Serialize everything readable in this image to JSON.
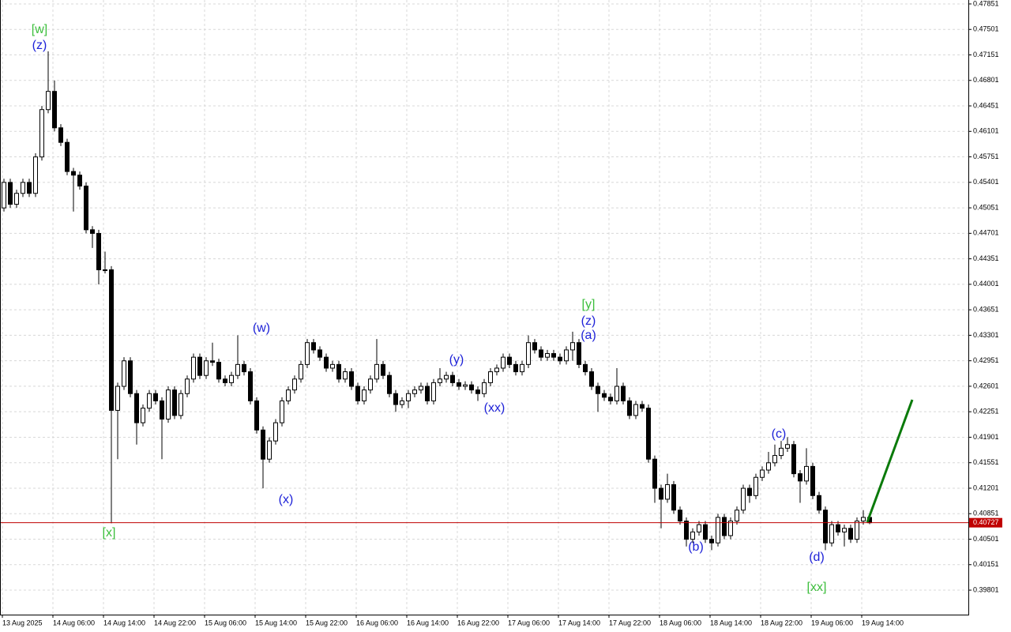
{
  "chart_data": {
    "type": "candlestick",
    "categories": [
      "13 Aug 2025",
      null,
      null,
      null,
      null,
      null,
      null,
      null,
      "14 Aug 06:00",
      null,
      null,
      null,
      null,
      null,
      null,
      null,
      "14 Aug 14:00",
      null,
      null,
      null,
      null,
      null,
      null,
      null,
      "14 Aug 22:00",
      null,
      null,
      null,
      null,
      null,
      null,
      null,
      "15 Aug 06:00",
      null,
      null,
      null,
      null,
      null,
      null,
      null,
      "15 Aug 14:00",
      null,
      null,
      null,
      null,
      null,
      null,
      null,
      "15 Aug 22:00",
      null,
      null,
      null,
      null,
      null,
      null,
      null,
      "16 Aug 06:00",
      null,
      null,
      null,
      null,
      null,
      null,
      null,
      "16 Aug 14:00",
      null,
      null,
      null,
      null,
      null,
      null,
      null,
      "16 Aug 22:00",
      null,
      null,
      null,
      null,
      null,
      null,
      null,
      "17 Aug 06:00",
      null,
      null,
      null,
      null,
      null,
      null,
      null,
      "17 Aug 14:00",
      null,
      null,
      null,
      null,
      null,
      null,
      null,
      "17 Aug 22:00",
      null,
      null,
      null,
      null,
      null,
      null,
      null,
      "18 Aug 06:00",
      null,
      null,
      null,
      null,
      null,
      null,
      null,
      "18 Aug 14:00",
      null,
      null,
      null,
      null,
      null,
      null,
      null,
      "18 Aug 22:00",
      null,
      null,
      null,
      null,
      null,
      null,
      null,
      "19 Aug 06:00",
      null,
      null,
      null,
      null,
      null,
      null,
      null,
      "19 Aug 14:00",
      null
    ],
    "ohlc": [
      [
        0.4505,
        0.4545,
        0.45,
        0.454
      ],
      [
        0.454,
        0.4545,
        0.4505,
        0.451
      ],
      [
        0.451,
        0.453,
        0.4505,
        0.4525
      ],
      [
        0.4525,
        0.4545,
        0.452,
        0.454
      ],
      [
        0.454,
        0.4545,
        0.452,
        0.4525
      ],
      [
        0.4525,
        0.458,
        0.452,
        0.4575
      ],
      [
        0.4575,
        0.4645,
        0.457,
        0.464
      ],
      [
        0.464,
        0.472,
        0.4635,
        0.4665
      ],
      [
        0.4665,
        0.468,
        0.461,
        0.4615
      ],
      [
        0.4615,
        0.462,
        0.459,
        0.4595
      ],
      [
        0.4595,
        0.46,
        0.455,
        0.4555
      ],
      [
        0.4555,
        0.456,
        0.45,
        0.455
      ],
      [
        0.455,
        0.4555,
        0.453,
        0.4535
      ],
      [
        0.4535,
        0.454,
        0.447,
        0.4475
      ],
      [
        0.4475,
        0.448,
        0.445,
        0.447
      ],
      [
        0.447,
        0.4475,
        0.44,
        0.442
      ],
      [
        0.442,
        0.4445,
        0.4415,
        0.442
      ],
      [
        0.442,
        0.4425,
        0.4072,
        0.4227
      ],
      [
        0.4227,
        0.4265,
        0.416,
        0.426
      ],
      [
        0.426,
        0.43,
        0.4255,
        0.4295
      ],
      [
        0.4295,
        0.43,
        0.4245,
        0.425
      ],
      [
        0.425,
        0.4255,
        0.418,
        0.421
      ],
      [
        0.421,
        0.4235,
        0.4205,
        0.423
      ],
      [
        0.423,
        0.4255,
        0.4225,
        0.425
      ],
      [
        0.425,
        0.4255,
        0.4235,
        0.424
      ],
      [
        0.424,
        0.4245,
        0.416,
        0.4215
      ],
      [
        0.4215,
        0.426,
        0.421,
        0.4255
      ],
      [
        0.4255,
        0.426,
        0.4215,
        0.422
      ],
      [
        0.422,
        0.4255,
        0.4215,
        0.425
      ],
      [
        0.425,
        0.4275,
        0.4245,
        0.427
      ],
      [
        0.427,
        0.4305,
        0.4265,
        0.43
      ],
      [
        0.43,
        0.4305,
        0.427,
        0.4275
      ],
      [
        0.4275,
        0.43,
        0.427,
        0.4295
      ],
      [
        0.4295,
        0.432,
        0.4288,
        0.4293
      ],
      [
        0.4293,
        0.4298,
        0.4265,
        0.427
      ],
      [
        0.427,
        0.4275,
        0.426,
        0.4265
      ],
      [
        0.4265,
        0.428,
        0.426,
        0.4275
      ],
      [
        0.4275,
        0.433,
        0.427,
        0.429
      ],
      [
        0.429,
        0.4295,
        0.4275,
        0.428
      ],
      [
        0.428,
        0.4285,
        0.4235,
        0.424
      ],
      [
        0.424,
        0.4245,
        0.4195,
        0.42
      ],
      [
        0.42,
        0.4205,
        0.412,
        0.416
      ],
      [
        0.416,
        0.419,
        0.4155,
        0.4185
      ],
      [
        0.4185,
        0.4215,
        0.418,
        0.421
      ],
      [
        0.421,
        0.4245,
        0.4205,
        0.424
      ],
      [
        0.424,
        0.426,
        0.4235,
        0.4255
      ],
      [
        0.4255,
        0.4275,
        0.425,
        0.427
      ],
      [
        0.427,
        0.4295,
        0.4265,
        0.429
      ],
      [
        0.429,
        0.4325,
        0.4285,
        0.432
      ],
      [
        0.432,
        0.4325,
        0.4305,
        0.431
      ],
      [
        0.431,
        0.4315,
        0.4295,
        0.43
      ],
      [
        0.43,
        0.4305,
        0.428,
        0.4285
      ],
      [
        0.4285,
        0.4295,
        0.428,
        0.429
      ],
      [
        0.429,
        0.4295,
        0.4265,
        0.427
      ],
      [
        0.427,
        0.4285,
        0.4265,
        0.428
      ],
      [
        0.428,
        0.4285,
        0.4255,
        0.426
      ],
      [
        0.426,
        0.4265,
        0.4235,
        0.424
      ],
      [
        0.424,
        0.426,
        0.4235,
        0.4255
      ],
      [
        0.4255,
        0.4275,
        0.425,
        0.427
      ],
      [
        0.427,
        0.4325,
        0.4265,
        0.429
      ],
      [
        0.429,
        0.4295,
        0.427,
        0.4275
      ],
      [
        0.4275,
        0.428,
        0.4245,
        0.425
      ],
      [
        0.425,
        0.4255,
        0.4225,
        0.4235
      ],
      [
        0.4235,
        0.4245,
        0.423,
        0.424
      ],
      [
        0.424,
        0.4255,
        0.423,
        0.425
      ],
      [
        0.425,
        0.426,
        0.4245,
        0.4255
      ],
      [
        0.4255,
        0.4265,
        0.425,
        0.426
      ],
      [
        0.426,
        0.4265,
        0.4235,
        0.424
      ],
      [
        0.424,
        0.427,
        0.4235,
        0.4265
      ],
      [
        0.4265,
        0.4285,
        0.426,
        0.427
      ],
      [
        0.427,
        0.428,
        0.4265,
        0.4275
      ],
      [
        0.4275,
        0.428,
        0.426,
        0.4265
      ],
      [
        0.4265,
        0.427,
        0.4255,
        0.426
      ],
      [
        0.426,
        0.4267,
        0.4255,
        0.4262
      ],
      [
        0.4262,
        0.4267,
        0.425,
        0.4255
      ],
      [
        0.4255,
        0.426,
        0.424,
        0.425
      ],
      [
        0.425,
        0.427,
        0.4245,
        0.4265
      ],
      [
        0.4265,
        0.4285,
        0.426,
        0.428
      ],
      [
        0.428,
        0.429,
        0.4275,
        0.4285
      ],
      [
        0.4285,
        0.4305,
        0.428,
        0.43
      ],
      [
        0.43,
        0.4305,
        0.4285,
        0.429
      ],
      [
        0.429,
        0.4295,
        0.4275,
        0.428
      ],
      [
        0.428,
        0.4295,
        0.4275,
        0.429
      ],
      [
        0.429,
        0.433,
        0.4285,
        0.432
      ],
      [
        0.432,
        0.4325,
        0.4305,
        0.431
      ],
      [
        0.431,
        0.4315,
        0.4295,
        0.43
      ],
      [
        0.43,
        0.431,
        0.4295,
        0.4305
      ],
      [
        0.4305,
        0.431,
        0.4295,
        0.43
      ],
      [
        0.43,
        0.4305,
        0.429,
        0.4295
      ],
      [
        0.4295,
        0.4315,
        0.429,
        0.431
      ],
      [
        0.431,
        0.4335,
        0.4295,
        0.432
      ],
      [
        0.432,
        0.4325,
        0.4285,
        0.429
      ],
      [
        0.429,
        0.4295,
        0.4275,
        0.428
      ],
      [
        0.428,
        0.4285,
        0.4255,
        0.426
      ],
      [
        0.426,
        0.4265,
        0.4225,
        0.425
      ],
      [
        0.425,
        0.4255,
        0.424,
        0.4245
      ],
      [
        0.4245,
        0.425,
        0.4235,
        0.424
      ],
      [
        0.424,
        0.4285,
        0.4235,
        0.426
      ],
      [
        0.426,
        0.4265,
        0.4235,
        0.424
      ],
      [
        0.424,
        0.4245,
        0.4215,
        0.422
      ],
      [
        0.422,
        0.424,
        0.4215,
        0.4235
      ],
      [
        0.4235,
        0.424,
        0.4225,
        0.423
      ],
      [
        0.423,
        0.4235,
        0.4155,
        0.416
      ],
      [
        0.416,
        0.4165,
        0.41,
        0.412
      ],
      [
        0.412,
        0.4125,
        0.4065,
        0.4105
      ],
      [
        0.4105,
        0.414,
        0.41,
        0.4125
      ],
      [
        0.4125,
        0.413,
        0.4085,
        0.409
      ],
      [
        0.409,
        0.4095,
        0.407,
        0.4075
      ],
      [
        0.4075,
        0.408,
        0.404,
        0.405
      ],
      [
        0.405,
        0.4065,
        0.4045,
        0.406
      ],
      [
        0.406,
        0.4075,
        0.4055,
        0.407
      ],
      [
        0.407,
        0.4075,
        0.4045,
        0.405
      ],
      [
        0.405,
        0.4055,
        0.4035,
        0.4045
      ],
      [
        0.4045,
        0.4085,
        0.404,
        0.408
      ],
      [
        0.408,
        0.4085,
        0.405,
        0.4055
      ],
      [
        0.4055,
        0.408,
        0.405,
        0.4075
      ],
      [
        0.4075,
        0.4095,
        0.407,
        0.409
      ],
      [
        0.409,
        0.4125,
        0.4085,
        0.412
      ],
      [
        0.412,
        0.4125,
        0.41,
        0.411
      ],
      [
        0.411,
        0.414,
        0.4105,
        0.4135
      ],
      [
        0.4135,
        0.415,
        0.413,
        0.4145
      ],
      [
        0.4145,
        0.417,
        0.414,
        0.4155
      ],
      [
        0.4155,
        0.418,
        0.415,
        0.4165
      ],
      [
        0.4165,
        0.4185,
        0.416,
        0.4175
      ],
      [
        0.4175,
        0.419,
        0.417,
        0.418
      ],
      [
        0.418,
        0.4185,
        0.4135,
        0.414
      ],
      [
        0.414,
        0.4145,
        0.41,
        0.413
      ],
      [
        0.413,
        0.4175,
        0.4125,
        0.415
      ],
      [
        0.415,
        0.4155,
        0.4105,
        0.411
      ],
      [
        0.411,
        0.4115,
        0.4085,
        0.409
      ],
      [
        0.409,
        0.4095,
        0.4035,
        0.4045
      ],
      [
        0.4045,
        0.4075,
        0.404,
        0.407
      ],
      [
        0.407,
        0.4075,
        0.4055,
        0.406
      ],
      [
        0.406,
        0.407,
        0.404,
        0.4065
      ],
      [
        0.4065,
        0.407,
        0.4045,
        0.405
      ],
      [
        0.405,
        0.408,
        0.4045,
        0.4075
      ],
      [
        0.4075,
        0.409,
        0.407,
        0.408
      ],
      [
        0.408,
        0.4085,
        0.40707,
        0.40727
      ]
    ],
    "up_color": "#ffffff",
    "down_color": "#000000",
    "ylim": [
      0.39465,
      0.47905
    ],
    "yticks": [
      0.47851,
      0.47501,
      0.47151,
      0.46801,
      0.46451,
      0.46101,
      0.45751,
      0.45401,
      0.45051,
      0.44701,
      0.44351,
      0.44001,
      0.43651,
      0.43301,
      0.42951,
      0.42601,
      0.42251,
      0.41901,
      0.41551,
      0.41201,
      0.40851,
      0.40501,
      0.40151,
      0.39801
    ],
    "grid": true,
    "last_price": 0.40727,
    "price_line_color": "#c00000",
    "annotations": [
      {
        "text": "[w]",
        "color": "#3cbf3c"
      },
      {
        "text": "(z)",
        "color": "#1e22d8"
      },
      {
        "text": "[x]",
        "color": "#3cbf3c"
      },
      {
        "text": "(w)",
        "color": "#1e22d8"
      },
      {
        "text": "(x)",
        "color": "#1e22d8"
      },
      {
        "text": "(y)",
        "color": "#1e22d8"
      },
      {
        "text": "(xx)",
        "color": "#1e22d8"
      },
      {
        "text": "[y]",
        "color": "#3cbf3c"
      },
      {
        "text": "(z)",
        "color": "#1e22d8"
      },
      {
        "text": "(a)",
        "color": "#1e22d8"
      },
      {
        "text": "(b)",
        "color": "#1e22d8"
      },
      {
        "text": "(c)",
        "color": "#1e22d8"
      },
      {
        "text": "(d)",
        "color": "#1e22d8"
      },
      {
        "text": "[xx]",
        "color": "#3cbf3c"
      }
    ]
  }
}
